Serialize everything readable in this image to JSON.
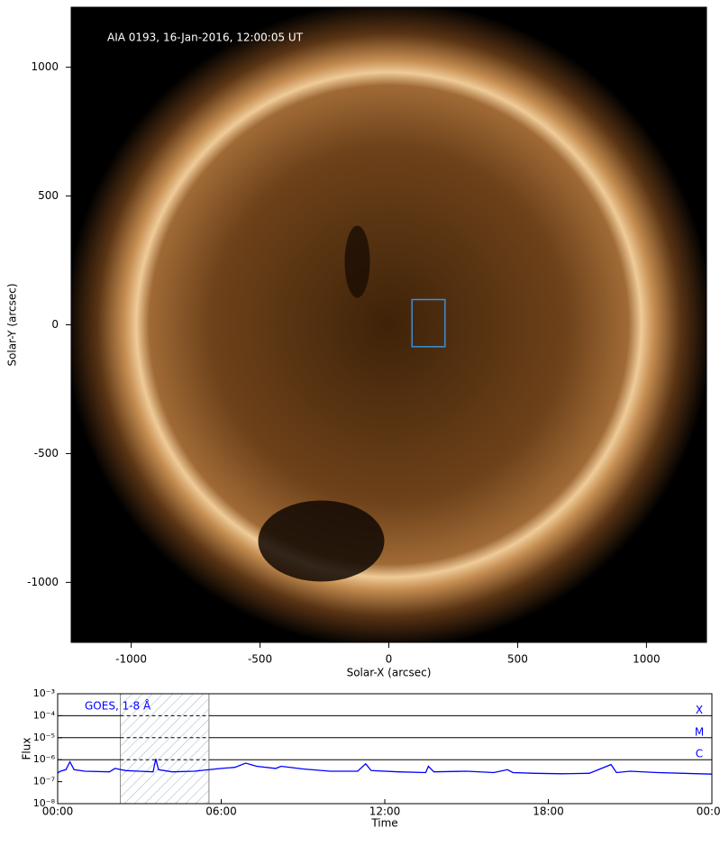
{
  "chart_data": [
    {
      "type": "image",
      "title": "AIA 0193, 16-Jan-2016, 12:00:05 UT",
      "xlabel": "Solar-X (arcsec)",
      "ylabel": "Solar-Y (arcsec)",
      "xlim": [
        -1233,
        1233
      ],
      "ylim": [
        -1233,
        1233
      ],
      "xticks": [
        -1000,
        -500,
        0,
        500,
        1000
      ],
      "yticks": [
        -1000,
        -500,
        0,
        500,
        1000
      ],
      "box": {
        "x": [
          90,
          218
        ],
        "y": [
          -85,
          98
        ],
        "color": "#3a8fd8"
      }
    },
    {
      "type": "line",
      "xlabel": "Time",
      "ylabel": "Flux",
      "log_scale": true,
      "x": [
        0,
        0.1,
        0.3,
        0.45,
        0.6,
        1.0,
        1.9,
        2.1,
        2.5,
        3.0,
        3.5,
        3.6,
        3.7,
        4.2,
        5.0,
        6.0,
        6.5,
        6.9,
        7.3,
        8.0,
        8.2,
        9.0,
        10.0,
        11.0,
        11.3,
        11.5,
        12.5,
        13.5,
        13.6,
        13.8,
        15.0,
        16.0,
        16.5,
        16.7,
        17.5,
        18.5,
        19.5,
        20.3,
        20.5,
        21.0,
        22.0,
        24.0
      ],
      "series": [
        {
          "name": "GOES, 1-8 Å",
          "color": "#0000ff",
          "values": [
            2.5e-07,
            3e-07,
            3.5e-07,
            8e-07,
            3.5e-07,
            3e-07,
            2.8e-07,
            4e-07,
            3.2e-07,
            3e-07,
            2.8e-07,
            1.1e-06,
            3.5e-07,
            2.8e-07,
            3e-07,
            4e-07,
            4.5e-07,
            7e-07,
            5e-07,
            4e-07,
            5e-07,
            3.8e-07,
            3e-07,
            3e-07,
            6.5e-07,
            3.2e-07,
            2.8e-07,
            2.6e-07,
            5e-07,
            2.8e-07,
            3e-07,
            2.6e-07,
            3.5e-07,
            2.6e-07,
            2.4e-07,
            2.3e-07,
            2.4e-07,
            6e-07,
            2.6e-07,
            3e-07,
            2.6e-07,
            2.2e-07
          ]
        }
      ],
      "xlim": [
        0,
        24
      ],
      "xticks": [
        {
          "value": 0,
          "label": "00:00"
        },
        {
          "value": 6,
          "label": "06:00"
        },
        {
          "value": 12,
          "label": "12:00"
        },
        {
          "value": 18,
          "label": "18:00"
        },
        {
          "value": 24,
          "label": "00:00"
        }
      ],
      "ylim": [
        1e-08,
        0.001
      ],
      "yticks": [
        {
          "value": 1e-08,
          "label": "10⁻⁸"
        },
        {
          "value": 1e-07,
          "label": "10⁻⁷"
        },
        {
          "value": 1e-06,
          "label": "10⁻⁶"
        },
        {
          "value": 1e-05,
          "label": "10⁻⁵"
        },
        {
          "value": 0.0001,
          "label": "10⁻⁴"
        },
        {
          "value": 0.001,
          "label": "10⁻³"
        }
      ],
      "levels": [
        {
          "value": 0.0001,
          "label": "X"
        },
        {
          "value": 1e-05,
          "label": "M"
        },
        {
          "value": 1e-06,
          "label": "C"
        }
      ],
      "highlight": [
        2.3,
        5.55
      ]
    }
  ]
}
